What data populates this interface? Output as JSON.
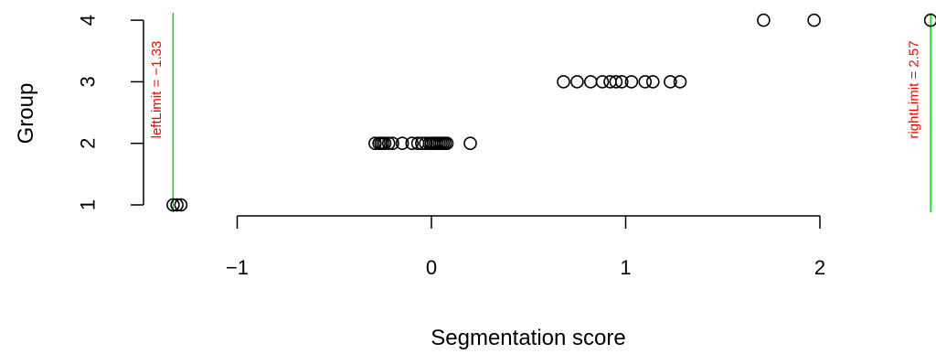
{
  "chart_data": {
    "type": "scatter",
    "xlabel": "Segmentation score",
    "ylabel": "Group",
    "x_ticks": [
      -1,
      0,
      1,
      2
    ],
    "x_tick_labels": [
      "−1",
      "0",
      "1",
      "2"
    ],
    "y_ticks": [
      1,
      2,
      3,
      4
    ],
    "y_tick_labels": [
      "1",
      "2",
      "3",
      "4"
    ],
    "xlim": [
      -1.5,
      2.6
    ],
    "ylim": [
      1,
      4
    ],
    "grid": false,
    "marker": "open-circle",
    "marker_color": "#000000",
    "series": [
      {
        "x": [
          -1.33,
          -1.31,
          -1.29,
          -0.29,
          -0.27,
          -0.26,
          -0.25,
          -0.24,
          -0.22,
          -0.2,
          -0.15,
          -0.1,
          -0.07,
          -0.05,
          -0.03,
          -0.01,
          0.0,
          0.01,
          0.02,
          0.03,
          0.04,
          0.05,
          0.06,
          0.07,
          0.08,
          0.2,
          0.68,
          0.75,
          0.82,
          0.88,
          0.92,
          0.95,
          0.98,
          1.03,
          1.1,
          1.14,
          1.23,
          1.28,
          1.71,
          1.97,
          2.57
        ],
        "y": [
          1,
          1,
          1,
          2,
          2,
          2,
          2,
          2,
          2,
          2,
          2,
          2,
          2,
          2,
          2,
          2,
          2,
          2,
          2,
          2,
          2,
          2,
          2,
          2,
          2,
          2,
          3,
          3,
          3,
          3,
          3,
          3,
          3,
          3,
          3,
          3,
          3,
          3,
          4,
          4,
          4
        ]
      }
    ],
    "limits": [
      {
        "label": "leftLimit = −1.33",
        "x": -1.33,
        "color": "#00dd00",
        "label_color": "#ff0000"
      },
      {
        "label": "rightLimit = 2.57",
        "x": 2.57,
        "color": "#00dd00",
        "label_color": "#ff0000"
      }
    ]
  }
}
